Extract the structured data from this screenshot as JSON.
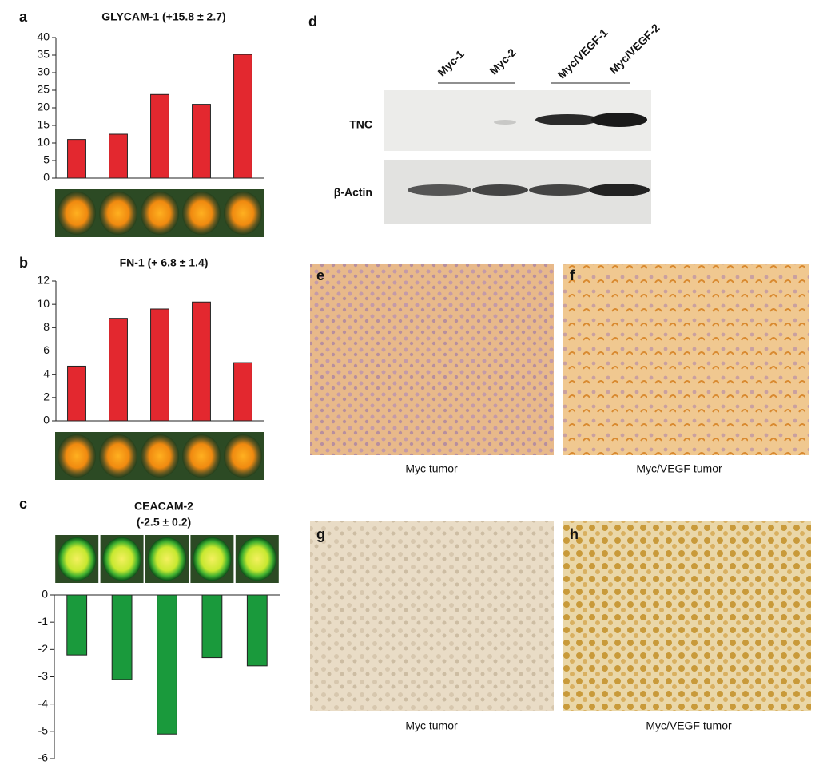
{
  "chart_data": [
    {
      "type": "bar",
      "panel_label": "a",
      "title": "GLYCAM-1 (+15.8 ± 2.7)",
      "values": [
        11,
        12.5,
        23.8,
        21,
        35.2
      ],
      "color": "#e3282f",
      "ylim": [
        0,
        40
      ],
      "yticks": [
        0,
        5,
        10,
        15,
        20,
        25,
        30,
        35,
        40
      ],
      "grid": false
    },
    {
      "type": "bar",
      "panel_label": "b",
      "title": "FN-1 (+ 6.8 ± 1.4)",
      "values": [
        4.7,
        8.8,
        9.6,
        10.2,
        5.0
      ],
      "color": "#e3282f",
      "ylim": [
        0,
        12
      ],
      "yticks": [
        0,
        2,
        4,
        6,
        8,
        10,
        12
      ],
      "grid": false
    },
    {
      "type": "bar",
      "panel_label": "c",
      "title": "CEACAM-2",
      "subtitle": "(-2.5 ± 0.2)",
      "values": [
        -2.2,
        -3.1,
        -5.1,
        -2.3,
        -2.6
      ],
      "color": "#1a9a3c",
      "ylim": [
        -6,
        0
      ],
      "yticks": [
        0,
        -1,
        -2,
        -3,
        -4,
        -5,
        -6
      ],
      "grid": false
    }
  ],
  "blot": {
    "panel_label": "d",
    "lanes": [
      "Myc-1",
      "Myc-2",
      "Myc/VEGF-1",
      "Myc/VEGF-2"
    ],
    "rows": [
      "TNC",
      "β-Actin"
    ]
  },
  "micrographs": [
    {
      "panel_label": "e",
      "caption": "Myc tumor"
    },
    {
      "panel_label": "f",
      "caption": "Myc/VEGF tumor"
    },
    {
      "panel_label": "g",
      "caption": "Myc tumor"
    },
    {
      "panel_label": "h",
      "caption": "Myc/VEGF tumor"
    }
  ]
}
